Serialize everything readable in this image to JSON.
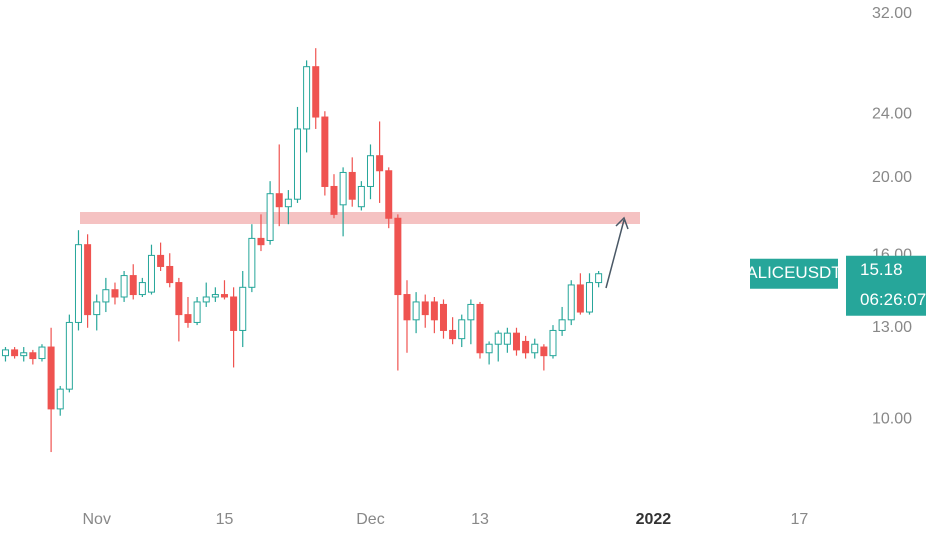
{
  "chart_data": {
    "type": "candlestick",
    "log_scale": true,
    "symbol": "ALICEUSDT",
    "last_price": 15.18,
    "countdown": "06:26:07",
    "up_color": "#26a69a",
    "down_color": "#ef5350",
    "x": [
      -10,
      -9,
      -8,
      -7,
      -6,
      -5,
      -4,
      -3,
      -2,
      -1,
      0,
      1,
      2,
      3,
      4,
      5,
      6,
      7,
      8,
      9,
      10,
      11,
      12,
      13,
      14,
      15,
      16,
      17,
      18,
      19,
      20,
      21,
      22,
      23,
      24,
      25,
      26,
      27,
      28,
      29,
      30,
      31,
      32,
      33,
      34,
      35,
      36,
      37,
      38,
      39,
      40,
      41,
      42,
      43,
      44,
      45,
      46,
      47,
      48,
      49,
      50,
      51,
      52,
      53,
      54,
      55
    ],
    "open": [
      12.0,
      12.2,
      12.0,
      12.1,
      11.9,
      12.3,
      10.3,
      10.9,
      13.2,
      16.5,
      13.5,
      14.0,
      14.5,
      14.2,
      15.1,
      14.3,
      14.4,
      16.0,
      15.5,
      14.8,
      13.5,
      13.2,
      14.0,
      14.2,
      14.3,
      14.2,
      12.9,
      14.6,
      16.8,
      16.7,
      19.1,
      18.4,
      18.8,
      23.0,
      27.5,
      23.8,
      19.5,
      18.5,
      20.3,
      18.4,
      19.5,
      21.3,
      20.4,
      17.8,
      14.3,
      13.3,
      14.0,
      14.0,
      13.9,
      12.9,
      12.6,
      13.3,
      13.9,
      12.1,
      12.4,
      12.4,
      12.8,
      12.5,
      12.1,
      12.3,
      12.0,
      12.9,
      13.3,
      14.7,
      13.6,
      14.8
    ],
    "high": [
      12.3,
      12.3,
      12.3,
      12.2,
      12.4,
      13.0,
      11.0,
      13.5,
      17.2,
      17.0,
      14.3,
      15.0,
      14.8,
      15.3,
      15.6,
      15.0,
      16.5,
      16.6,
      16.1,
      15.0,
      14.2,
      14.2,
      14.8,
      14.6,
      14.9,
      14.6,
      15.3,
      17.5,
      18.0,
      19.8,
      22.0,
      19.3,
      24.5,
      28.0,
      29.0,
      24.2,
      20.2,
      20.6,
      21.2,
      19.8,
      22.0,
      23.5,
      20.6,
      18.0,
      14.9,
      14.4,
      14.3,
      14.2,
      14.1,
      13.4,
      13.5,
      14.1,
      14.0,
      12.5,
      12.9,
      13.0,
      13.0,
      12.7,
      12.6,
      12.4,
      13.1,
      13.8,
      14.9,
      15.2,
      15.2,
      15.3
    ],
    "low": [
      11.8,
      11.9,
      11.8,
      11.7,
      11.8,
      9.1,
      10.1,
      10.8,
      12.9,
      13.0,
      12.9,
      13.6,
      13.9,
      14.0,
      14.1,
      14.2,
      14.3,
      15.3,
      14.6,
      12.5,
      13.0,
      13.1,
      13.8,
      14.0,
      14.1,
      11.6,
      12.3,
      14.4,
      16.2,
      16.5,
      17.4,
      17.5,
      18.6,
      21.5,
      23.0,
      19.0,
      17.8,
      16.9,
      18.4,
      18.2,
      18.8,
      18.6,
      17.3,
      11.5,
      12.1,
      12.8,
      13.0,
      12.8,
      12.6,
      12.4,
      12.3,
      12.4,
      11.9,
      11.7,
      11.8,
      12.1,
      12.0,
      11.9,
      11.9,
      11.5,
      11.9,
      12.7,
      13.1,
      13.5,
      13.5,
      14.6
    ],
    "close": [
      12.2,
      12.0,
      12.1,
      11.9,
      12.3,
      10.3,
      10.9,
      13.2,
      16.5,
      13.5,
      14.0,
      14.5,
      14.2,
      15.1,
      14.3,
      14.8,
      16.0,
      15.5,
      14.8,
      13.5,
      13.2,
      14.0,
      14.2,
      14.3,
      14.2,
      12.9,
      14.6,
      16.8,
      16.5,
      19.1,
      18.4,
      18.8,
      23.0,
      27.5,
      23.8,
      19.5,
      18.0,
      20.3,
      18.8,
      19.5,
      21.3,
      20.4,
      17.8,
      14.3,
      13.3,
      14.0,
      13.5,
      13.3,
      12.9,
      12.6,
      13.3,
      13.9,
      12.1,
      12.4,
      12.8,
      12.8,
      12.2,
      12.1,
      12.4,
      12.0,
      12.9,
      13.3,
      14.7,
      13.6,
      14.8,
      15.18
    ],
    "xlim": [
      -10.6,
      82
    ],
    "xticks": [
      {
        "value": 0,
        "label": "Nov"
      },
      {
        "value": 14,
        "label": "15"
      },
      {
        "value": 30,
        "label": "Dec"
      },
      {
        "value": 42,
        "label": "13"
      },
      {
        "value": 61,
        "label": "2022"
      },
      {
        "value": 77,
        "label": "17"
      }
    ],
    "ylim": [
      7.93,
      33.3
    ],
    "yticks": [
      {
        "value": 10,
        "label": "10.00"
      },
      {
        "value": 13,
        "label": "13.00"
      },
      {
        "value": 16,
        "label": "16.00"
      },
      {
        "value": 20,
        "label": "20.00"
      },
      {
        "value": 24,
        "label": "24.00"
      },
      {
        "value": 32,
        "label": "32.00"
      }
    ]
  }
}
